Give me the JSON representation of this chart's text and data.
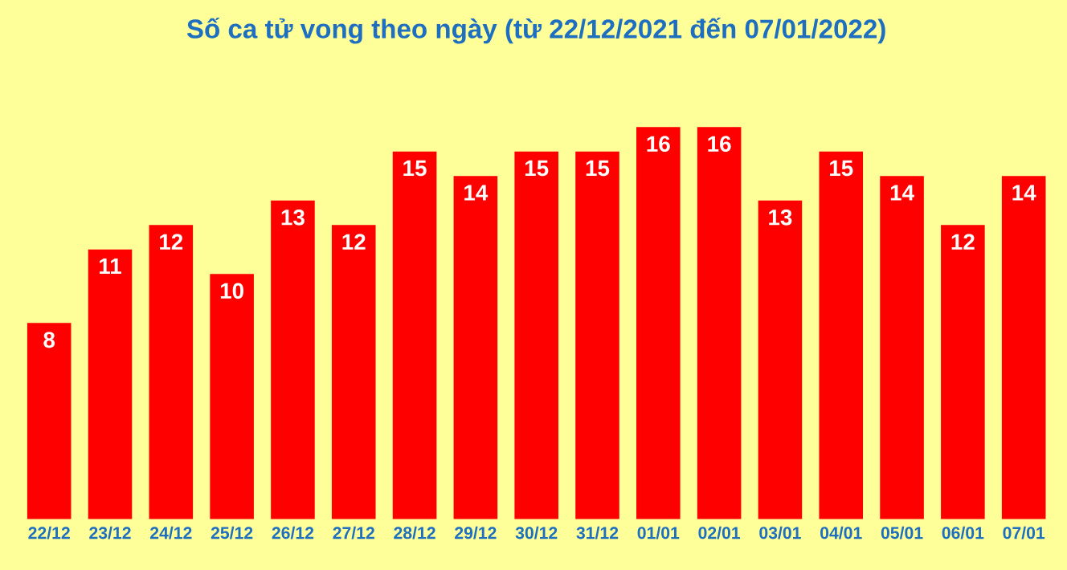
{
  "chart_data": {
    "type": "bar",
    "title": "Số ca tử vong theo ngày (từ 22/12/2021 đến 07/01/2022)",
    "categories": [
      "22/12",
      "23/12",
      "24/12",
      "25/12",
      "26/12",
      "27/12",
      "28/12",
      "29/12",
      "30/12",
      "31/12",
      "01/01",
      "02/01",
      "03/01",
      "04/01",
      "05/01",
      "06/01",
      "07/01"
    ],
    "values": [
      8,
      11,
      12,
      10,
      13,
      12,
      15,
      14,
      15,
      15,
      16,
      16,
      13,
      15,
      14,
      12,
      14
    ],
    "color": "#ff0000",
    "data_labels": true
  }
}
